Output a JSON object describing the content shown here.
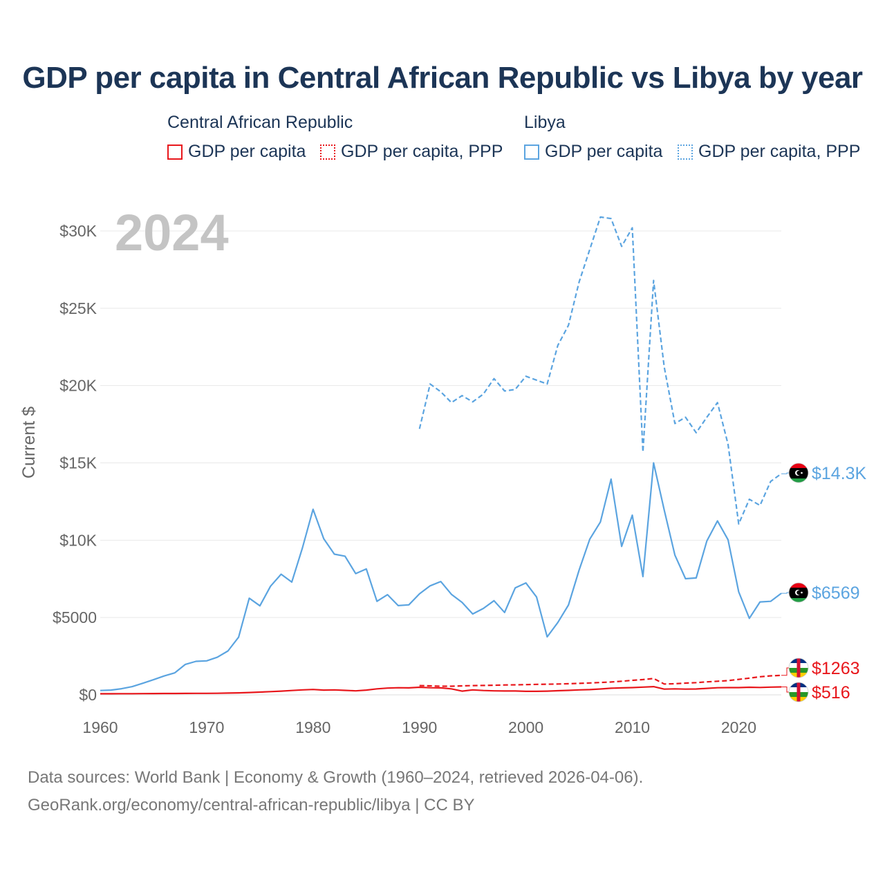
{
  "chart_data": {
    "type": "line",
    "title": "GDP per capita in Central African Republic vs Libya by year",
    "year_label": "2024",
    "ylabel": "Current $",
    "xlabel": "",
    "xlim": [
      1960,
      2024
    ],
    "ylim": [
      0,
      32000
    ],
    "x_ticks": [
      1960,
      1970,
      1980,
      1990,
      2000,
      2010,
      2020
    ],
    "y_ticks": [
      {
        "value": 0,
        "label": "$0"
      },
      {
        "value": 5000,
        "label": "$5000"
      },
      {
        "value": 10000,
        "label": "$10K"
      },
      {
        "value": 15000,
        "label": "$15K"
      },
      {
        "value": 20000,
        "label": "$20K"
      },
      {
        "value": 25000,
        "label": "$25K"
      },
      {
        "value": 30000,
        "label": "$30K"
      }
    ],
    "grid": true,
    "legend": [
      {
        "country": "Central African Republic",
        "items": [
          "GDP per capita",
          "GDP per capita, PPP"
        ]
      },
      {
        "country": "Libya",
        "items": [
          "GDP per capita",
          "GDP per capita, PPP"
        ]
      }
    ],
    "series": [
      {
        "name": "Libya GDP per capita, PPP",
        "country": "Libya",
        "color": "#5ba4e0",
        "dash": "dashed",
        "start_year": 1990,
        "values": [
          17200,
          20100,
          19600,
          18900,
          19350,
          18950,
          19450,
          20450,
          19650,
          19750,
          20600,
          20350,
          20100,
          22600,
          23900,
          26700,
          28800,
          30900,
          30800,
          29000,
          30200,
          15700,
          26800,
          21200,
          17550,
          17950,
          16950,
          17950,
          18900,
          16200,
          11050,
          12650,
          12250,
          13800,
          14300
        ],
        "end_label": "$14.3K"
      },
      {
        "name": "Libya GDP per capita",
        "country": "Libya",
        "color": "#5ba4e0",
        "dash": "solid",
        "start_year": 1960,
        "values": [
          280,
          310,
          400,
          530,
          750,
          980,
          1220,
          1420,
          1970,
          2170,
          2200,
          2430,
          2840,
          3730,
          6250,
          5760,
          7030,
          7800,
          7290,
          9500,
          12000,
          10100,
          9100,
          8970,
          7840,
          8140,
          6050,
          6480,
          5770,
          5820,
          6530,
          7050,
          7330,
          6500,
          5980,
          5230,
          5590,
          6090,
          5330,
          6920,
          7240,
          6330,
          3750,
          4680,
          5810,
          8070,
          10070,
          11180,
          13950,
          9600,
          11620,
          7650,
          15000,
          11950,
          9040,
          7510,
          7560,
          9950,
          11250,
          10030,
          6660,
          4950,
          6010,
          6050,
          6569
        ],
        "end_label": "$6569"
      },
      {
        "name": "Central African Republic GDP per capita, PPP",
        "country": "Central African Republic",
        "color": "#e8161b",
        "dash": "dashed",
        "start_year": 1990,
        "values": [
          600,
          580,
          560,
          560,
          580,
          600,
          610,
          620,
          640,
          650,
          660,
          680,
          690,
          700,
          720,
          740,
          770,
          800,
          830,
          880,
          940,
          990,
          1060,
          700,
          720,
          760,
          790,
          840,
          880,
          920,
          1000,
          1080,
          1170,
          1230,
          1263
        ],
        "end_label": "$1263"
      },
      {
        "name": "Central African Republic GDP per capita",
        "country": "Central African Republic",
        "color": "#e8161b",
        "dash": "solid",
        "start_year": 1960,
        "values": [
          70,
          72,
          75,
          78,
          80,
          85,
          88,
          90,
          95,
          100,
          100,
          105,
          115,
          130,
          150,
          180,
          210,
          240,
          280,
          320,
          350,
          310,
          320,
          290,
          260,
          310,
          390,
          440,
          460,
          450,
          490,
          460,
          450,
          390,
          240,
          320,
          280,
          260,
          250,
          250,
          230,
          230,
          240,
          270,
          290,
          320,
          340,
          380,
          430,
          450,
          470,
          500,
          530,
          370,
          390,
          370,
          380,
          420,
          460,
          470,
          470,
          490,
          480,
          500,
          516
        ],
        "end_label": "$516"
      }
    ]
  },
  "footer": {
    "line1": "Data sources: World Bank | Economy & Growth (1960–2024, retrieved 2026-04-06).",
    "line2": "GeoRank.org/economy/central-african-republic/libya | CC BY"
  },
  "colors": {
    "libya": "#5ba4e0",
    "car": "#e8161b",
    "title": "#1c3556",
    "grid": "#e6e6e6",
    "axis_text": "#666666",
    "year_watermark": "#c4c4c4"
  }
}
